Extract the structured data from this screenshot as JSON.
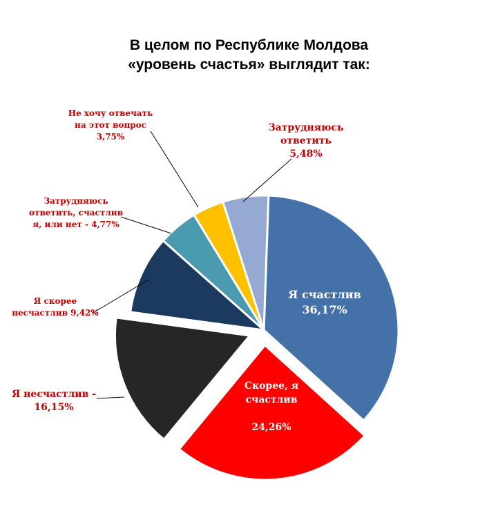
{
  "chart_data": {
    "type": "pie",
    "title_lines": [
      "В целом по Республике Молдова",
      "«уровень счастья» выглядит так:"
    ],
    "slices": [
      {
        "key": "happy",
        "value": 36.17,
        "color": "#4472a8",
        "exploded": false,
        "label_lines": [
          "Я счастлив",
          "36,17%"
        ]
      },
      {
        "key": "rather-happy",
        "value": 24.26,
        "color": "#ff0000",
        "exploded": true,
        "label_lines": [
          "Скорее, я",
          "счастлив",
          "",
          "24,26%"
        ]
      },
      {
        "key": "unhappy",
        "value": 16.15,
        "color": "#262626",
        "exploded": true,
        "label_lines": [
          "Я несчастлив -",
          "16,15%"
        ]
      },
      {
        "key": "rather-unhappy",
        "value": 9.42,
        "color": "#1b3a5e",
        "exploded": false,
        "label_lines": [
          "Я скорее",
          "несчастлив 9,42%"
        ]
      },
      {
        "key": "hard-to-say-both",
        "value": 4.77,
        "color": "#4a9bb0",
        "exploded": false,
        "label_lines": [
          "Затрудняюсь",
          "ответить, счастлив",
          "я, или нет -  4,77%"
        ]
      },
      {
        "key": "no-answer",
        "value": 3.75,
        "color": "#ffc000",
        "exploded": false,
        "label_lines": [
          "Не хочу отвечать",
          "на этот вопрос",
          "3,75%"
        ]
      },
      {
        "key": "hard-to-say",
        "value": 5.48,
        "color": "#95a9d2",
        "exploded": false,
        "label_lines": [
          "Затрудняюсь",
          "ответить",
          "5,48%"
        ]
      }
    ]
  }
}
